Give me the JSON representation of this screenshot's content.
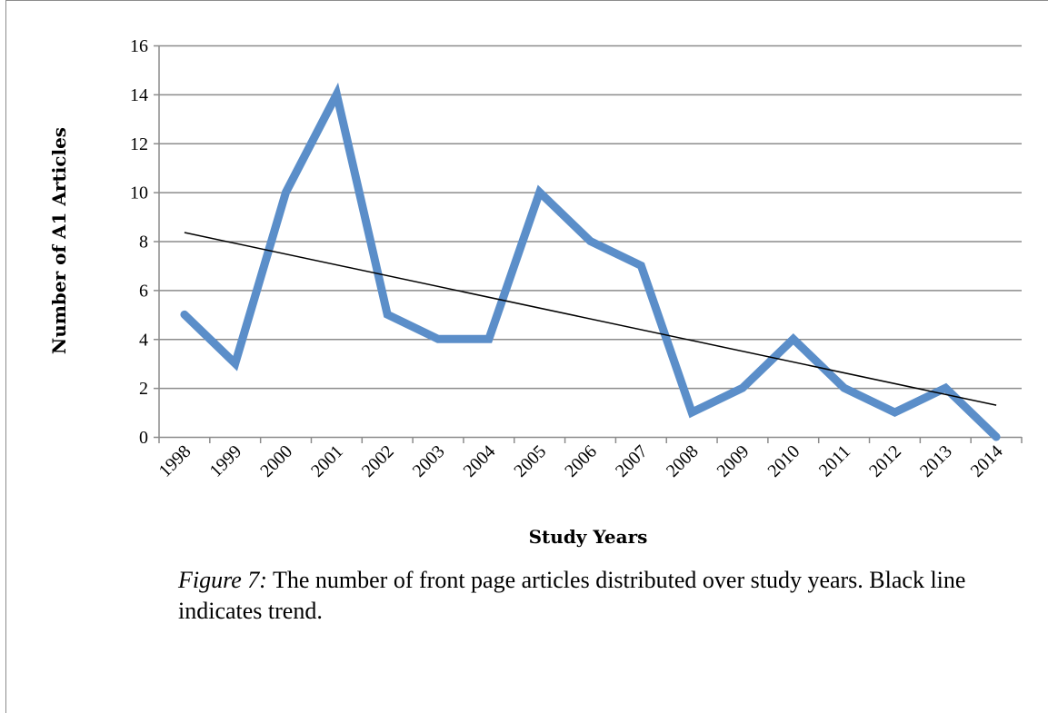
{
  "chart_data": {
    "type": "line",
    "categories": [
      "1998",
      "1999",
      "2000",
      "2001",
      "2002",
      "2003",
      "2004",
      "2005",
      "2006",
      "2007",
      "2008",
      "2009",
      "2010",
      "2011",
      "2012",
      "2013",
      "2014"
    ],
    "series": [
      {
        "values": [
          5,
          3,
          10,
          14,
          5,
          4,
          4,
          10,
          8,
          7,
          1,
          2,
          4,
          2,
          1,
          2,
          0
        ]
      }
    ],
    "trendline": {
      "type": "linear"
    },
    "xlabel": "Study Years",
    "ylabel": "Number of A1 Articles",
    "ylim": [
      0,
      16
    ],
    "yticks": [
      "0",
      "2",
      "4",
      "6",
      "8",
      "10",
      "12",
      "14",
      "16"
    ],
    "grid": true,
    "colors": {
      "series": "#5b8ec9",
      "trend": "#000000",
      "grid": "#8c8c8c",
      "border": "#8c8c8c"
    }
  },
  "caption": {
    "label": "Figure 7:",
    "text": " The number of front page articles distributed over study years. Black line indicates trend."
  }
}
